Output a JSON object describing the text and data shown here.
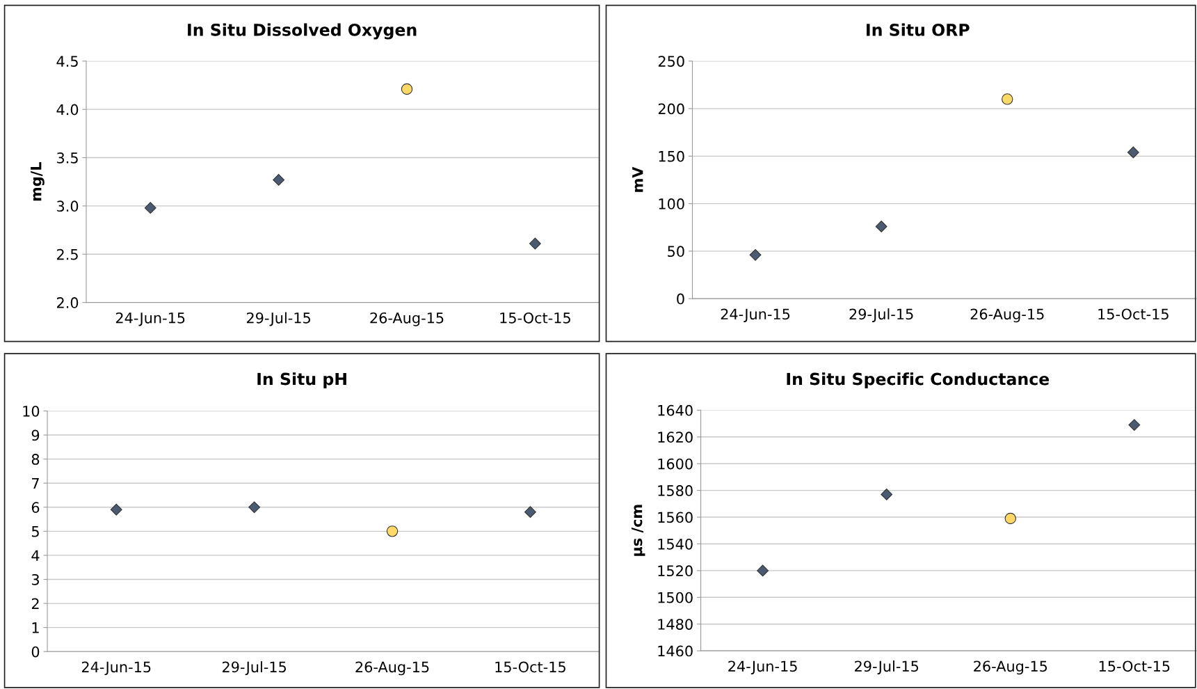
{
  "chart_data": [
    {
      "type": "scatter",
      "title": "In Situ Dissolved Oxygen",
      "ylabel": "mg/L",
      "categories": [
        "24-Jun-15",
        "29-Jul-15",
        "26-Aug-15",
        "15-Oct-15"
      ],
      "series": [
        {
          "color": "#4a5a70",
          "marker": "diamond",
          "values": [
            2.98,
            3.27,
            null,
            2.61
          ]
        },
        {
          "color": "#ffd966",
          "marker": "circle",
          "values": [
            null,
            null,
            4.21,
            null
          ]
        }
      ],
      "ylim": [
        2.0,
        4.5
      ],
      "yticks": [
        {
          "value": 2.0,
          "label": "2.0"
        },
        {
          "value": 2.5,
          "label": "2.5"
        },
        {
          "value": 3.0,
          "label": "3.0"
        },
        {
          "value": 3.5,
          "label": "3.5"
        },
        {
          "value": 4.0,
          "label": "4.0"
        },
        {
          "value": 4.5,
          "label": "4.5"
        }
      ],
      "grid": "y"
    },
    {
      "type": "scatter",
      "title": "In Situ ORP",
      "ylabel": "mV",
      "categories": [
        "24-Jun-15",
        "29-Jul-15",
        "26-Aug-15",
        "15-Oct-15"
      ],
      "series": [
        {
          "color": "#4a5a70",
          "marker": "diamond",
          "values": [
            46,
            76,
            null,
            154
          ]
        },
        {
          "color": "#ffd966",
          "marker": "circle",
          "values": [
            null,
            null,
            210,
            null
          ]
        }
      ],
      "ylim": [
        0,
        250
      ],
      "yticks": [
        0,
        50,
        100,
        150,
        200,
        250
      ],
      "grid": "y"
    },
    {
      "type": "scatter",
      "title": "In Situ pH",
      "categories": [
        "24-Jun-15",
        "29-Jul-15",
        "26-Aug-15",
        "15-Oct-15"
      ],
      "series": [
        {
          "color": "#4a5a70",
          "marker": "diamond",
          "values": [
            5.9,
            6.0,
            null,
            5.8
          ]
        },
        {
          "color": "#ffd966",
          "marker": "circle",
          "values": [
            null,
            null,
            5.0,
            null
          ]
        }
      ],
      "ylim": [
        0,
        10
      ],
      "yticks": [
        0,
        1,
        2,
        3,
        4,
        5,
        6,
        7,
        8,
        9,
        10
      ],
      "grid": "y"
    },
    {
      "type": "scatter",
      "title": "In Situ Specific Conductance",
      "ylabel": "µs /cm",
      "categories": [
        "24-Jun-15",
        "29-Jul-15",
        "26-Aug-15",
        "15-Oct-15"
      ],
      "series": [
        {
          "color": "#4a5a70",
          "marker": "diamond",
          "values": [
            1520,
            1577,
            null,
            1629
          ]
        },
        {
          "color": "#ffd966",
          "marker": "circle",
          "values": [
            null,
            null,
            1559,
            null
          ]
        }
      ],
      "ylim": [
        1460,
        1640
      ],
      "yticks": [
        1460,
        1480,
        1500,
        1520,
        1540,
        1560,
        1580,
        1600,
        1620,
        1640
      ],
      "grid": "y"
    }
  ]
}
